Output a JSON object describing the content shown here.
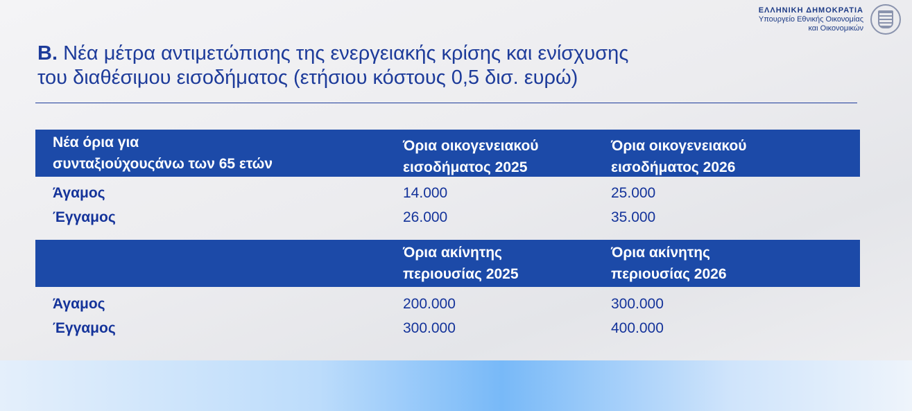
{
  "header": {
    "gov_name": "ΕΛΛΗΝΙΚΗ ΔΗΜΟΚΡΑΤΙΑ",
    "ministry_line1": "Υπουργείο Εθνικής Οικονομίας",
    "ministry_line2": "και Οικονομικών"
  },
  "title": {
    "prefix": "Β.",
    "line1": "Νέα μέτρα αντιμετώπισης της ενεργειακής κρίσης και ενίσχυσης",
    "line2": "του διαθέσιμου εισοδήματος (ετήσιου κόστους 0,5 δισ. ευρώ)"
  },
  "table1": {
    "headers": [
      [
        "Νέα όρια για",
        "συνταξιούχουςάνω των 65 ετών"
      ],
      [
        "Όρια οικογενειακού",
        "εισοδήματος 2025"
      ],
      [
        "Όρια οικογενειακού",
        "εισοδήματος 2026"
      ]
    ],
    "rows": [
      {
        "label": "Άγαμος",
        "v2025": "14.000",
        "v2026": "25.000"
      },
      {
        "label": "Έγγαμος",
        "v2025": "26.000",
        "v2026": "35.000"
      }
    ]
  },
  "table2": {
    "headers": [
      [
        "Όρια ακίνητης",
        "περιουσίας 2025"
      ],
      [
        "Όρια ακίνητης",
        "περιουσίας 2026"
      ]
    ],
    "rows": [
      {
        "label": "Άγαμος",
        "v2025": "200.000",
        "v2026": "300.000"
      },
      {
        "label": "Έγγαμος",
        "v2025": "300.000",
        "v2026": "400.000"
      }
    ]
  },
  "colors": {
    "brand_blue": "#1c4aa8",
    "text_blue": "#14339a"
  }
}
